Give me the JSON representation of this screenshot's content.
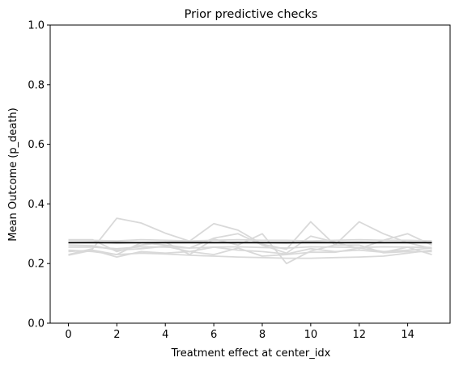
{
  "chart_data": {
    "type": "line",
    "title": "Prior predictive checks",
    "xlabel": "Treatment effect at center_idx",
    "ylabel": "Mean Outcome (p_death)",
    "xlim": [
      -0.75,
      15.75
    ],
    "ylim": [
      0.0,
      1.0
    ],
    "xticks": [
      0,
      2,
      4,
      6,
      8,
      10,
      12,
      14
    ],
    "yticks": [
      0.0,
      0.2,
      0.4,
      0.6,
      0.8,
      1.0
    ],
    "xtick_labels": [
      "0",
      "2",
      "4",
      "6",
      "8",
      "10",
      "12",
      "14"
    ],
    "ytick_labels": [
      "0.0",
      "0.2",
      "0.4",
      "0.6",
      "0.8",
      "1.0"
    ],
    "grid": false,
    "legend": "none",
    "x": [
      0,
      1,
      2,
      3,
      4,
      5,
      6,
      7,
      8,
      9,
      10,
      11,
      12,
      13,
      14,
      15
    ],
    "series_color": "#d9d9d9",
    "mean_color": "#000000",
    "series": [
      {
        "values": [
          0.23,
          0.25,
          0.352,
          0.336,
          0.302,
          0.275,
          0.334,
          0.312,
          0.265,
          0.248,
          0.34,
          0.262,
          0.34,
          0.3,
          0.27,
          0.25
        ]
      },
      {
        "values": [
          0.228,
          0.245,
          0.23,
          0.27,
          0.262,
          0.252,
          0.285,
          0.3,
          0.262,
          0.235,
          0.292,
          0.272,
          0.25,
          0.278,
          0.3,
          0.262
        ]
      },
      {
        "values": [
          0.28,
          0.28,
          0.24,
          0.262,
          0.272,
          0.23,
          0.282,
          0.262,
          0.3,
          0.2,
          0.242,
          0.262,
          0.262,
          0.236,
          0.24,
          0.24
        ]
      },
      {
        "values": [
          0.24,
          0.245,
          0.222,
          0.24,
          0.235,
          0.24,
          0.23,
          0.252,
          0.225,
          0.23,
          0.238,
          0.238,
          0.252,
          0.24,
          0.245,
          0.252
        ]
      },
      {
        "values": [
          0.27,
          0.272,
          0.268,
          0.27,
          0.272,
          0.274,
          0.27,
          0.272,
          0.27,
          0.268,
          0.272,
          0.27,
          0.272,
          0.27,
          0.272,
          0.27
        ]
      },
      {
        "values": [
          0.278,
          0.278,
          0.276,
          0.28,
          0.278,
          0.276,
          0.278,
          0.28,
          0.278,
          0.278,
          0.276,
          0.278,
          0.28,
          0.278,
          0.278,
          0.276
        ]
      },
      {
        "values": [
          0.255,
          0.255,
          0.25,
          0.256,
          0.255,
          0.252,
          0.255,
          0.256,
          0.254,
          0.252,
          0.256,
          0.255,
          0.254,
          0.256,
          0.255,
          0.254
        ]
      },
      {
        "values": [
          0.245,
          0.24,
          0.23,
          0.235,
          0.232,
          0.228,
          0.225,
          0.222,
          0.22,
          0.218,
          0.218,
          0.22,
          0.222,
          0.225,
          0.235,
          0.245
        ]
      },
      {
        "values": [
          0.262,
          0.26,
          0.245,
          0.25,
          0.258,
          0.24,
          0.255,
          0.245,
          0.24,
          0.232,
          0.25,
          0.24,
          0.245,
          0.238,
          0.255,
          0.23
        ]
      }
    ],
    "mean_line": {
      "values": [
        0.27,
        0.27,
        0.27,
        0.27,
        0.27,
        0.27,
        0.27,
        0.27,
        0.27,
        0.27,
        0.27,
        0.27,
        0.27,
        0.27,
        0.27,
        0.27
      ]
    }
  }
}
